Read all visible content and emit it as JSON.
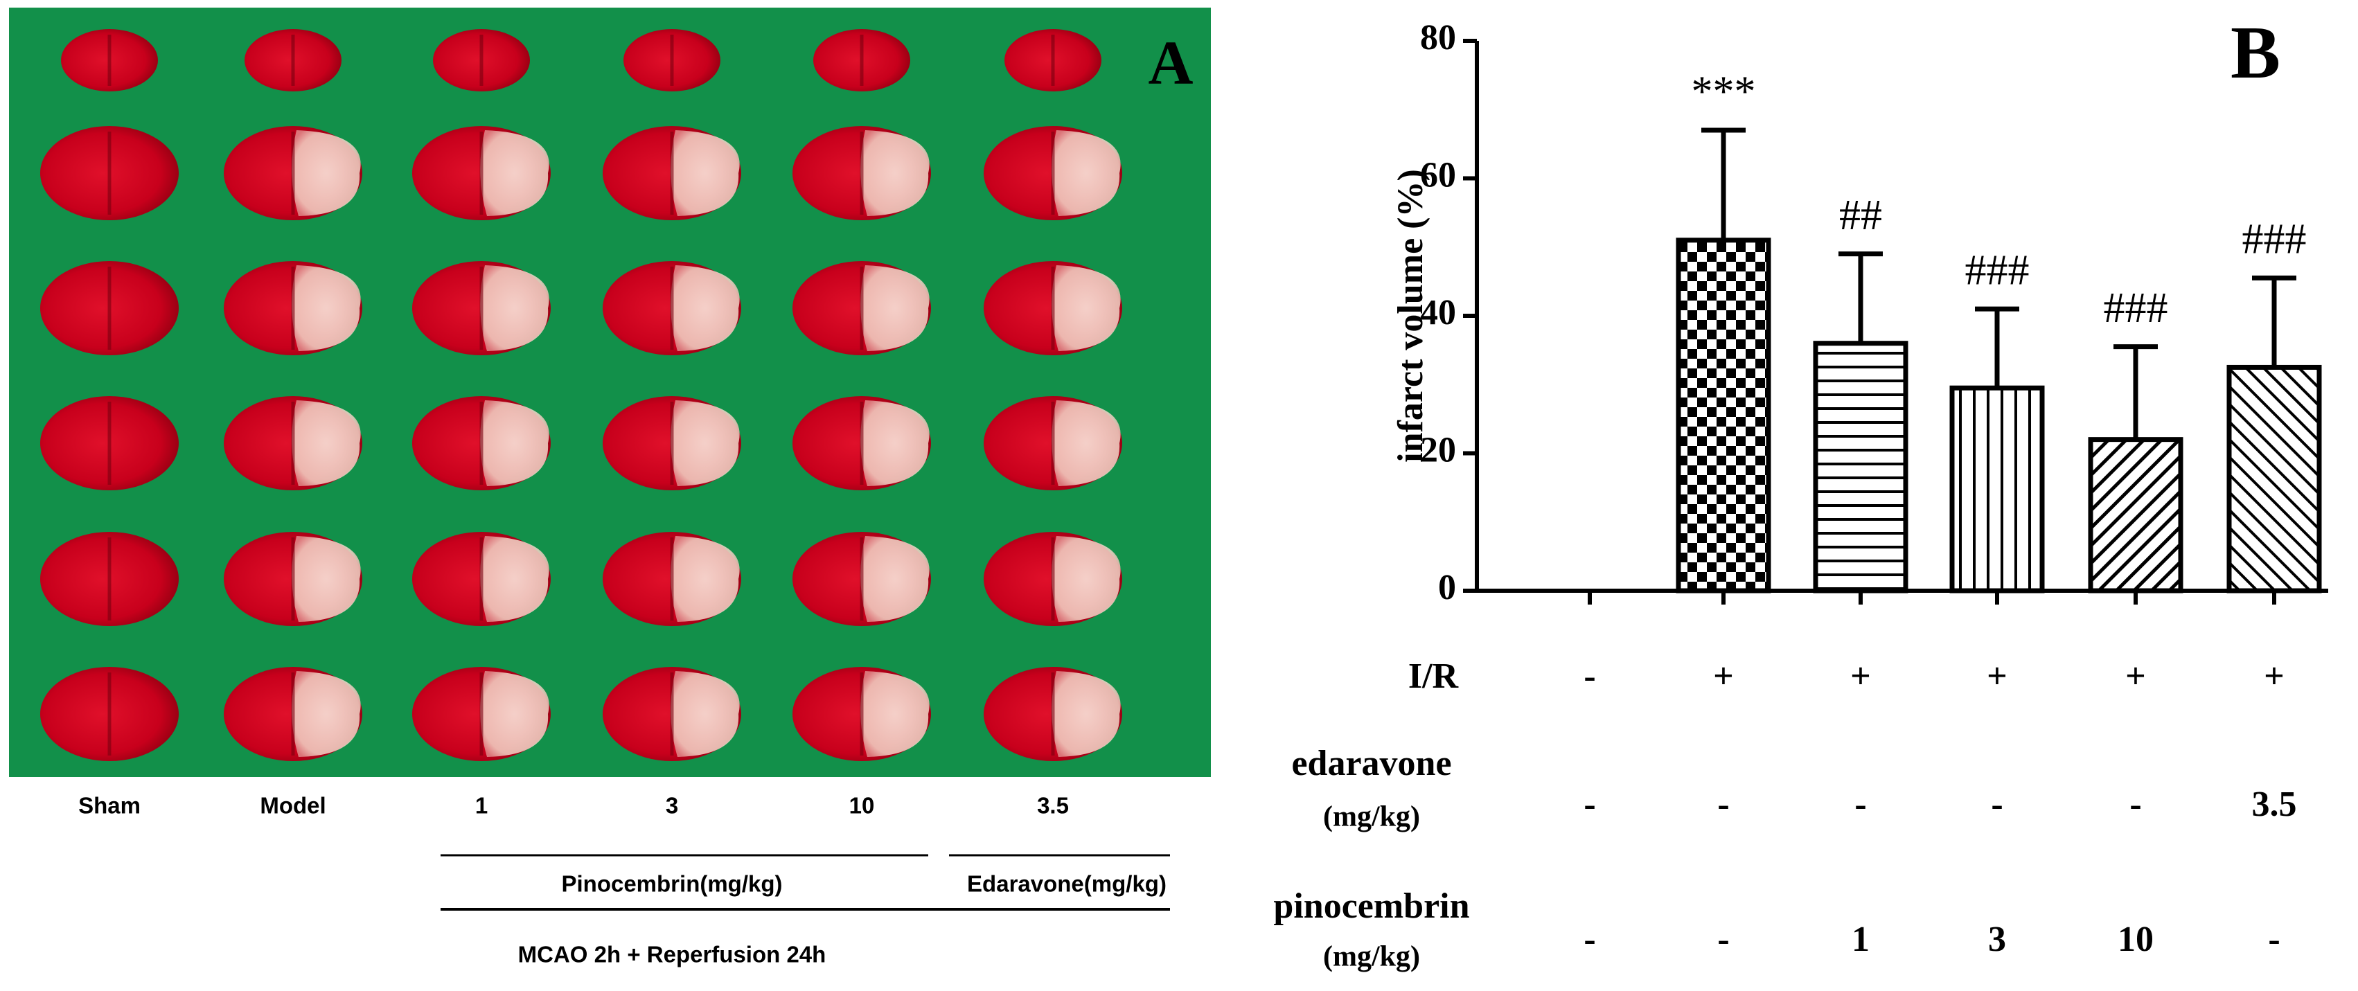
{
  "panel_a": {
    "label": "A",
    "columns": [
      "Sham",
      "Model",
      "1",
      "3",
      "10",
      "3.5"
    ],
    "groups": [
      "Pinocembrin(mg/kg)",
      "Edaravone(mg/kg)"
    ],
    "footer": "MCAO 2h + Reperfusion 24h"
  },
  "chart_data": {
    "type": "bar",
    "panel_label": "B",
    "ylabel": "infarct volume (%)",
    "categories": [
      null,
      null,
      null,
      null,
      null,
      null
    ],
    "values": [
      0,
      51,
      36,
      29.5,
      22,
      32.5
    ],
    "errors": [
      null,
      16,
      13,
      11.5,
      13.5,
      13
    ],
    "annotations": [
      null,
      "***",
      "##",
      "###",
      "###",
      "###"
    ],
    "patterns": [
      "none",
      "checker",
      "horizontal",
      "vertical",
      "diagonal-up",
      "diagonal-down"
    ],
    "color": "#000000",
    "ylim": [
      0,
      80
    ],
    "yticks": [
      0,
      20,
      40,
      60,
      80
    ],
    "grid": false,
    "conditions": [
      {
        "label": "I/R",
        "values": [
          "-",
          "+",
          "+",
          "+",
          "+",
          "+"
        ]
      },
      {
        "label": "edaravone",
        "unit": "(mg/kg)",
        "values": [
          "-",
          "-",
          "-",
          "-",
          "-",
          "3.5"
        ]
      },
      {
        "label": "pinocembrin",
        "unit": "(mg/kg)",
        "values": [
          "-",
          "-",
          "1",
          "3",
          "10",
          "-"
        ]
      }
    ]
  }
}
